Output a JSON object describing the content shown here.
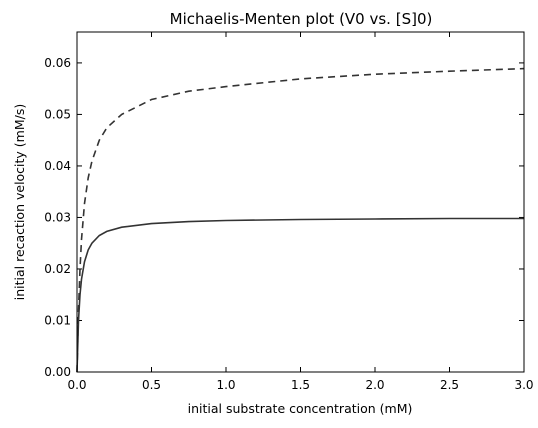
{
  "chart_data": {
    "type": "line",
    "title": "Michaelis-Menten plot (V0 vs. [S]0)",
    "xlabel": "initial substrate concentration (mM)",
    "ylabel": "initial recaction velocity (mM/s)",
    "xlim": [
      0.0,
      3.0
    ],
    "ylim": [
      0.0,
      0.066
    ],
    "grid": false,
    "legend": "none",
    "x_ticks": [
      "0.0",
      "0.5",
      "1.0",
      "1.5",
      "2.0",
      "2.5",
      "3.0"
    ],
    "y_ticks": [
      "0.00",
      "0.01",
      "0.02",
      "0.03",
      "0.04",
      "0.05",
      "0.06"
    ],
    "x_tick_values": [
      0.0,
      0.5,
      1.0,
      1.5,
      2.0,
      2.5,
      3.0
    ],
    "y_tick_values": [
      0.0,
      0.01,
      0.02,
      0.03,
      0.04,
      0.05,
      0.06
    ],
    "series": [
      {
        "style": "solid",
        "color": "#333333",
        "x": [
          0.0,
          0.01,
          0.02,
          0.03,
          0.05,
          0.075,
          0.1,
          0.15,
          0.2,
          0.3,
          0.5,
          0.75,
          1.0,
          1.5,
          2.0,
          2.5,
          3.0
        ],
        "y": [
          0.0,
          0.01,
          0.015,
          0.018,
          0.0214,
          0.0237,
          0.025,
          0.0265,
          0.0273,
          0.0281,
          0.0288,
          0.0292,
          0.0294,
          0.0296,
          0.0297,
          0.0298,
          0.0298
        ]
      },
      {
        "style": "dashed",
        "color": "#333333",
        "x": [
          0.0,
          0.01,
          0.02,
          0.03,
          0.05,
          0.075,
          0.1,
          0.15,
          0.2,
          0.3,
          0.5,
          0.75,
          1.0,
          1.5,
          2.0,
          2.5,
          3.0
        ],
        "y": [
          0.0,
          0.012,
          0.02,
          0.0257,
          0.0327,
          0.0377,
          0.0409,
          0.045,
          0.0474,
          0.05,
          0.0529,
          0.0545,
          0.0554,
          0.0569,
          0.0578,
          0.0584,
          0.0589
        ]
      }
    ]
  }
}
